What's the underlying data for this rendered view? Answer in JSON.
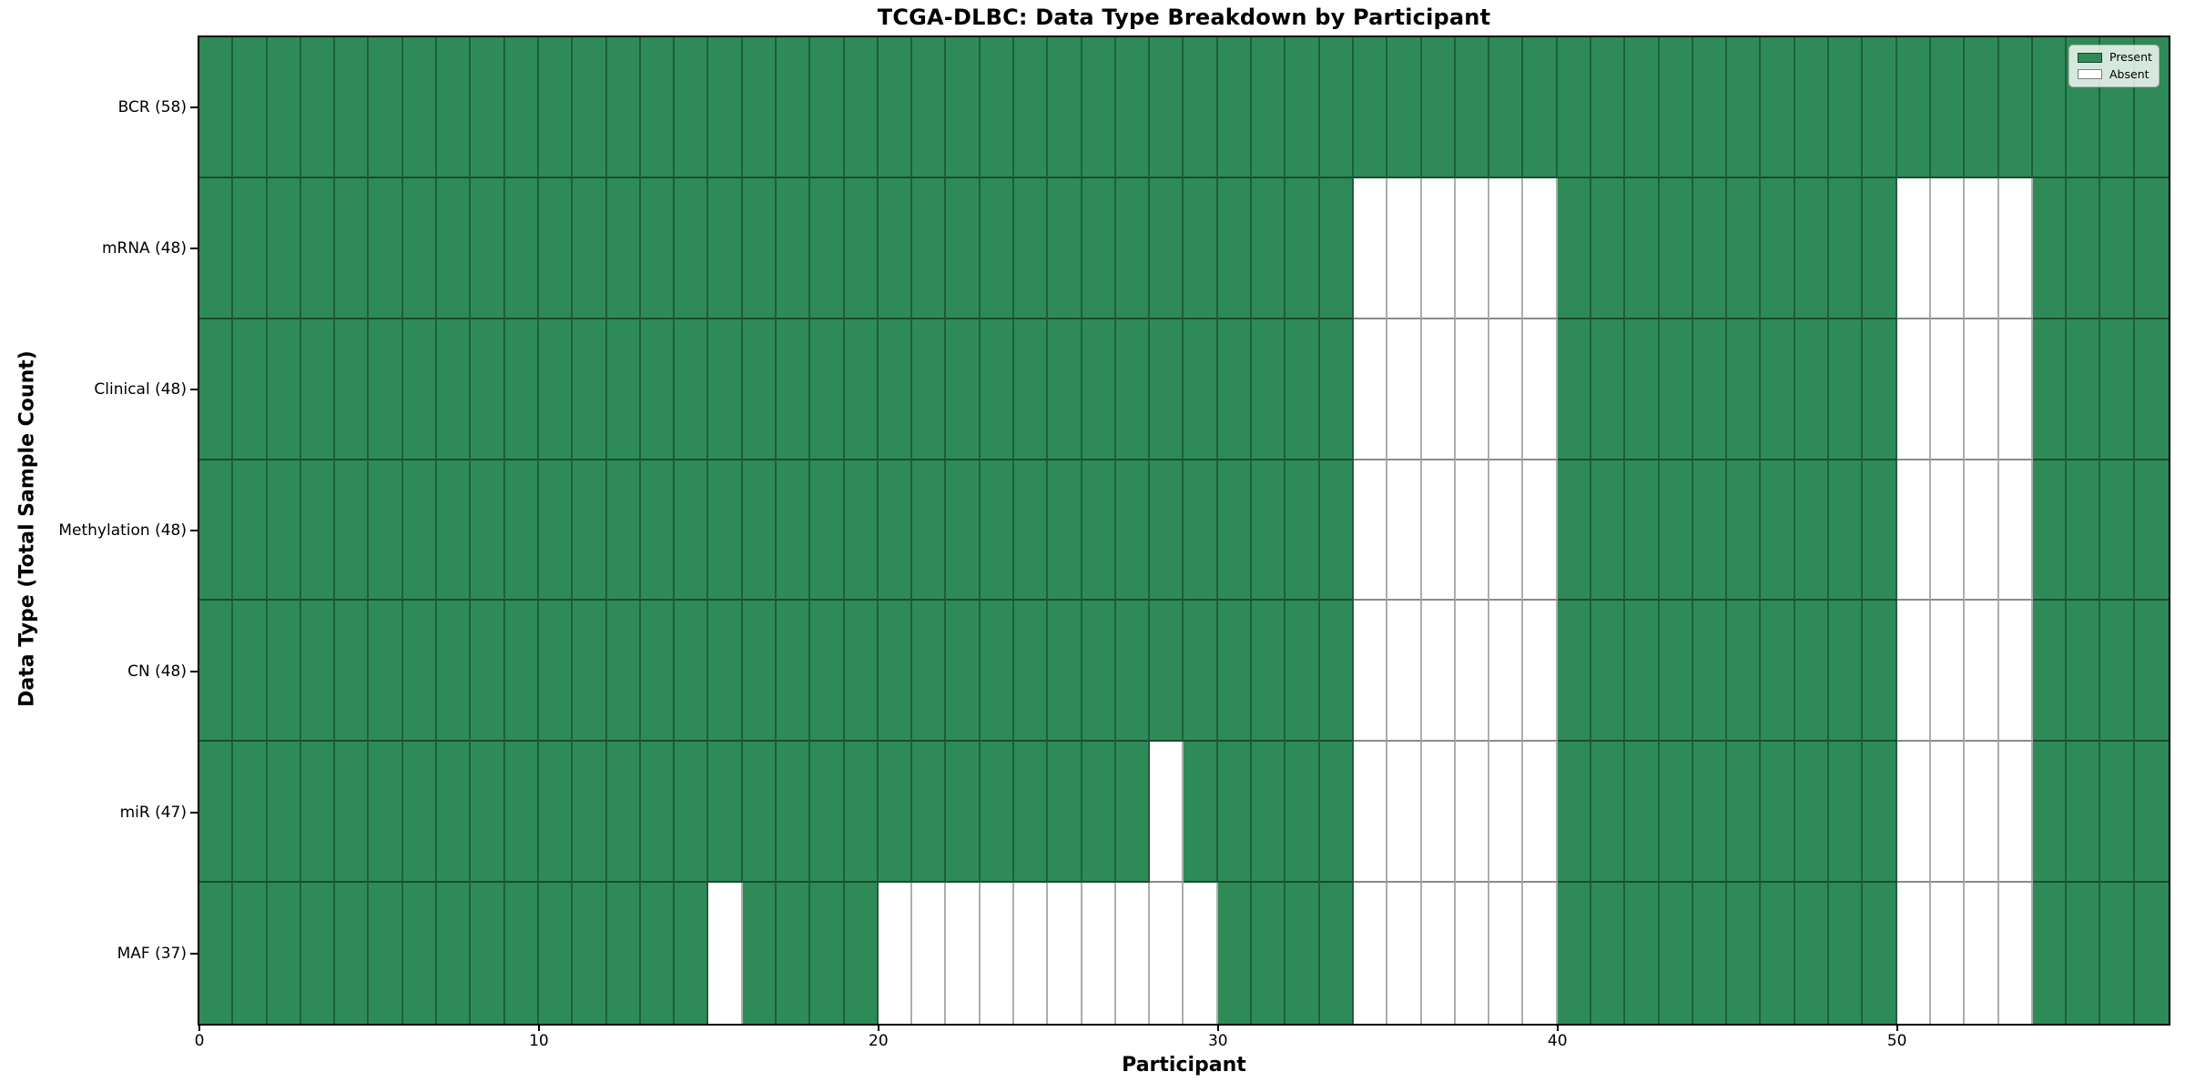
{
  "figure": {
    "title": "TCGA-DLBC: Data Type Breakdown by Participant",
    "xlabel": "Participant",
    "ylabel": "Data Type (Total Sample Count)"
  },
  "legend": {
    "present_label": "Present",
    "absent_label": "Absent",
    "position": "upper right"
  },
  "colors": {
    "present": "#2e8b57",
    "absent": "#ffffff",
    "vline": "rgba(0,0,0,0.32)",
    "hline": "rgba(0,0,0,0.45)",
    "spine": "#000000"
  },
  "chart_data": {
    "type": "heatmap",
    "title": "TCGA-DLBC: Data Type Breakdown by Participant",
    "xlabel": "Participant",
    "ylabel": "Data Type (Total Sample Count)",
    "n_participants": 58,
    "x_ticks": [
      0,
      10,
      20,
      30,
      40,
      50
    ],
    "xlim": [
      0,
      58
    ],
    "grid": "cell-borders",
    "legend_entries": [
      "Present",
      "Absent"
    ],
    "value_encoding": {
      "present": 1,
      "absent": 0
    },
    "rows": [
      {
        "label": "BCR (58)",
        "data_type": "BCR",
        "total_sample_count": 58,
        "absent_participants": []
      },
      {
        "label": "mRNA (48)",
        "data_type": "mRNA",
        "total_sample_count": 48,
        "absent_participants": [
          34,
          35,
          36,
          37,
          38,
          39,
          50,
          51,
          52,
          53
        ]
      },
      {
        "label": "Clinical (48)",
        "data_type": "Clinical",
        "total_sample_count": 48,
        "absent_participants": [
          34,
          35,
          36,
          37,
          38,
          39,
          50,
          51,
          52,
          53
        ]
      },
      {
        "label": "Methylation (48)",
        "data_type": "Methylation",
        "total_sample_count": 48,
        "absent_participants": [
          34,
          35,
          36,
          37,
          38,
          39,
          50,
          51,
          52,
          53
        ]
      },
      {
        "label": "CN (48)",
        "data_type": "CN",
        "total_sample_count": 48,
        "absent_participants": [
          34,
          35,
          36,
          37,
          38,
          39,
          50,
          51,
          52,
          53
        ]
      },
      {
        "label": "miR (47)",
        "data_type": "miR",
        "total_sample_count": 47,
        "absent_participants": [
          28,
          34,
          35,
          36,
          37,
          38,
          39,
          50,
          51,
          52,
          53
        ]
      },
      {
        "label": "MAF (37)",
        "data_type": "MAF",
        "total_sample_count": 37,
        "absent_participants": [
          15,
          20,
          21,
          22,
          23,
          24,
          25,
          26,
          27,
          28,
          29,
          34,
          35,
          36,
          37,
          38,
          39,
          50,
          51,
          52,
          53
        ]
      }
    ]
  }
}
